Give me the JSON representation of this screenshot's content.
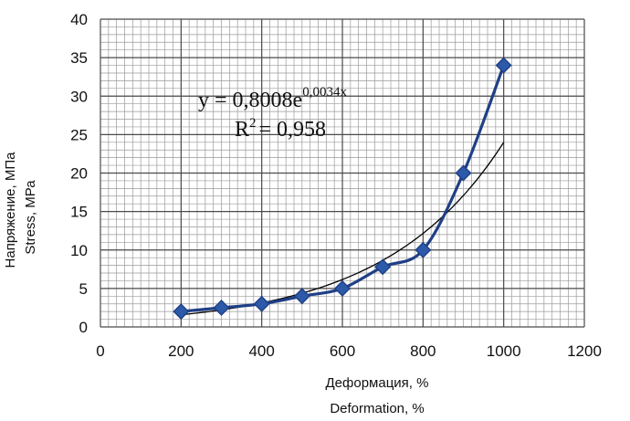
{
  "chart_data": {
    "type": "scatter",
    "xlabel": [
      "Деформация, %",
      "Deformation, %"
    ],
    "ylabel": [
      "Напряжение, МПа",
      "Stress, МРа"
    ],
    "xlim": [
      0,
      1200
    ],
    "ylim": [
      0,
      40
    ],
    "x_ticks": [
      "0",
      "200",
      "400",
      "600",
      "800",
      "1000",
      "1200"
    ],
    "y_ticks": [
      "0",
      "5",
      "10",
      "15",
      "20",
      "25",
      "30",
      "35",
      "40"
    ],
    "grid": true,
    "series": [
      {
        "x": [
          200,
          300,
          400,
          500,
          600,
          700,
          800,
          900,
          1000
        ],
        "y": [
          2,
          2.5,
          3,
          4,
          5,
          7.8,
          10,
          20,
          34
        ],
        "marker": "diamond",
        "color": "#1f3f86",
        "smooth_line": true
      }
    ],
    "trendline": {
      "kind": "exponential",
      "a": 0.8008,
      "b": 0.0034,
      "x_range": [
        200,
        1000
      ],
      "color": "#000000"
    },
    "annotations": {
      "equation_main": "y = 0,8008e",
      "equation_exponent": "0,0034x",
      "r2_main": "R",
      "r2_sup": "2",
      "r2_value": "= 0,958"
    }
  }
}
